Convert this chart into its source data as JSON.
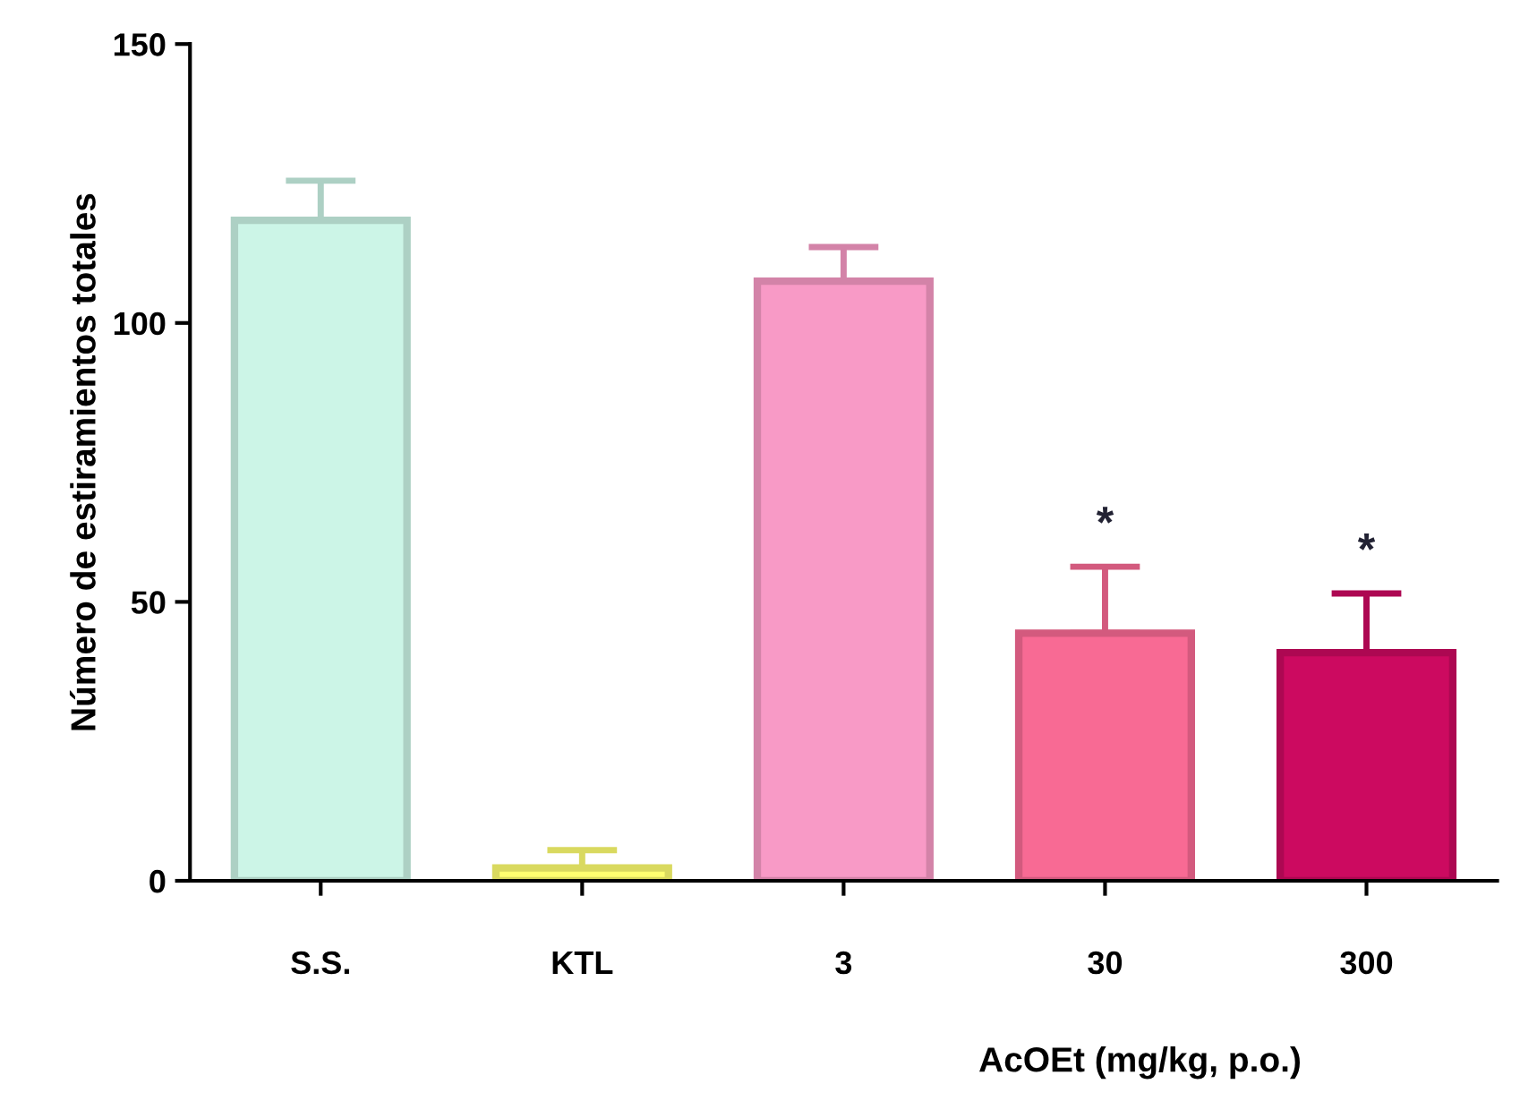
{
  "chart_data": {
    "type": "bar",
    "categories": [
      "S.S.",
      "KTL",
      "3",
      "30",
      "300"
    ],
    "values": [
      118.4,
      2.3,
      107.5,
      44.4,
      40.9
    ],
    "colors": [
      "#ccf5e7",
      "#ffff70",
      "#f89ac6",
      "#f86a94",
      "#cc0a60"
    ],
    "errors": [
      [
        118.4,
        125.5
      ],
      [
        2.3,
        5.5
      ],
      [
        107.5,
        113.6
      ],
      [
        44.4,
        56.3
      ],
      [
        40.9,
        51.5
      ]
    ],
    "ylabel": "Número de estiramientos totales",
    "xlabel": "AcOEt (mg/kg, p.o.)",
    "ylim": [
      0,
      150
    ],
    "yticks": [
      0,
      50,
      100,
      150
    ],
    "annotations": [
      {
        "text": "*",
        "x": "30",
        "y": 56.3
      },
      {
        "text": "*",
        "x": "300",
        "y": 51.5
      }
    ],
    "grid": false,
    "legend": false
  }
}
